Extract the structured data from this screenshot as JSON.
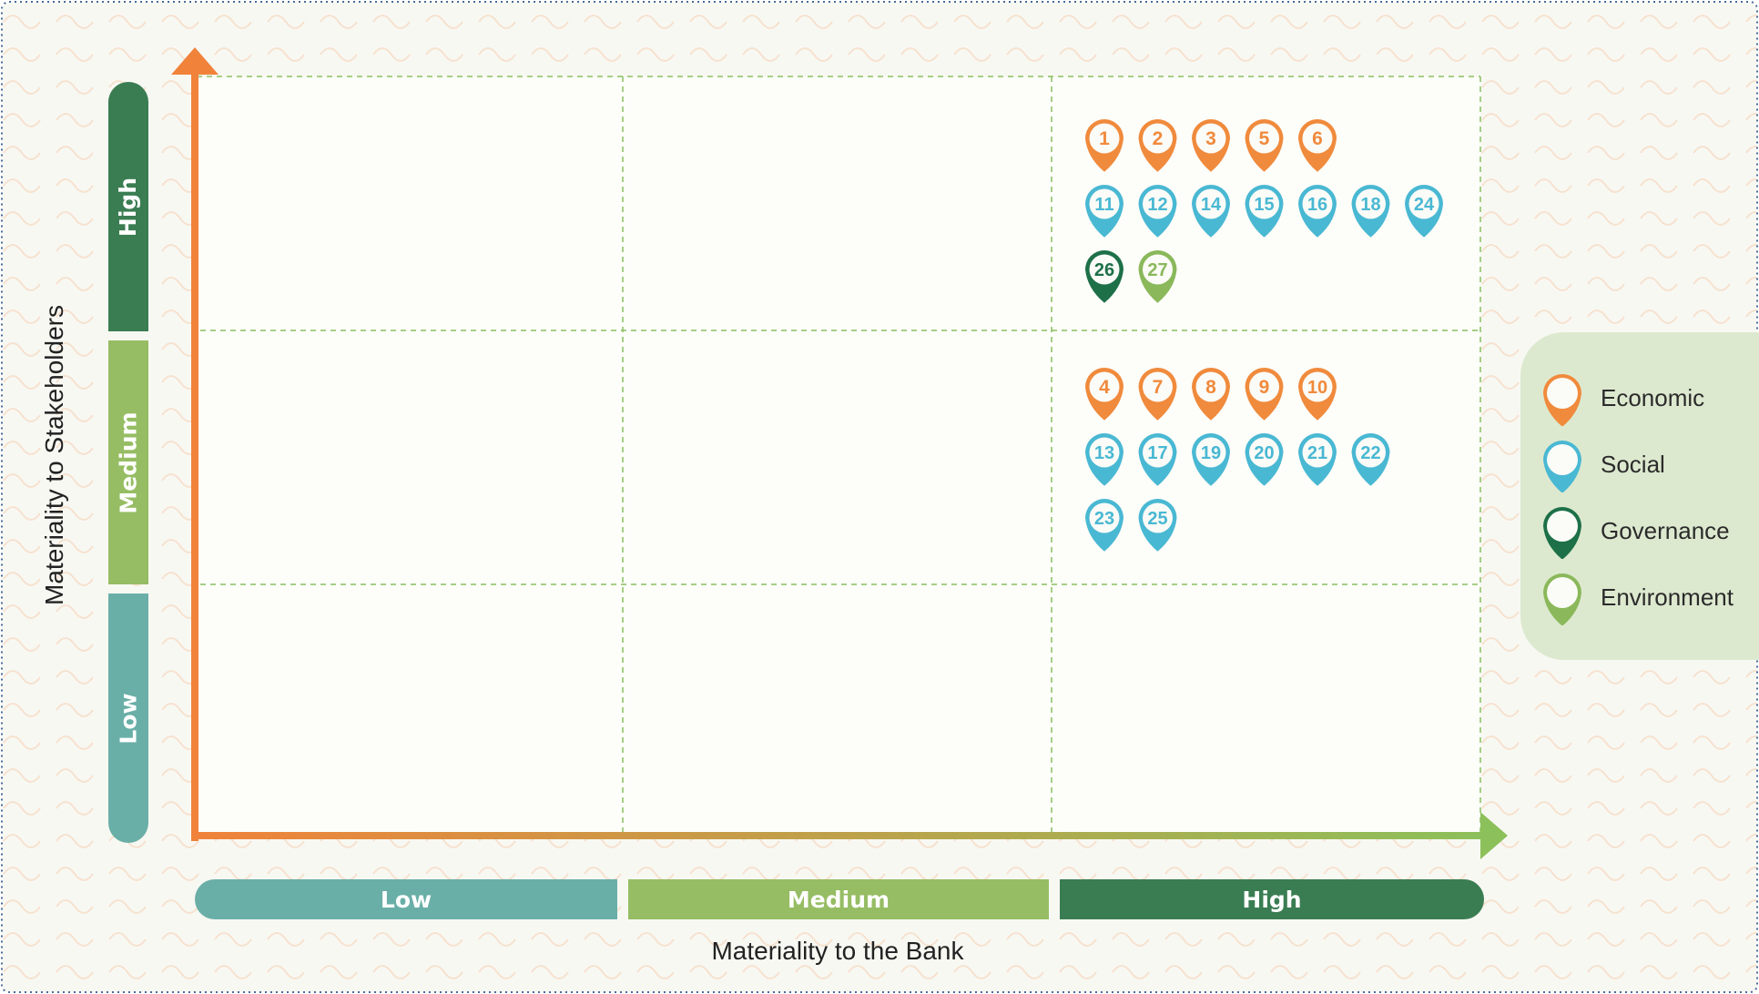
{
  "title_y": "Materiality to Stakeholders",
  "title_x": "Materiality to the Bank",
  "levels_x": [
    "Low",
    "Medium",
    "High"
  ],
  "levels_y": [
    "High",
    "Medium",
    "Low"
  ],
  "colors": {
    "economic": "#f08a3c",
    "social": "#49b8d3",
    "governance": "#1d7048",
    "environment": "#8ab85a",
    "low": "#6aafa7",
    "medium": "#96bd63",
    "high": "#3a7d52",
    "grid_line": "#8ac060",
    "axis_start": "#f0823a",
    "axis_end": "#8cc05a",
    "legend_bg": "#dde9cf"
  },
  "legend": [
    {
      "label": "Economic",
      "category": "economic"
    },
    {
      "label": "Social",
      "category": "social"
    },
    {
      "label": "Governance",
      "category": "governance"
    },
    {
      "label": "Environment",
      "category": "environment"
    }
  ],
  "chart_data": {
    "type": "matrix",
    "x_levels": [
      "Low",
      "Medium",
      "High"
    ],
    "y_levels": [
      "Low",
      "Medium",
      "High"
    ],
    "cells": [
      {
        "x": "High",
        "y": "High",
        "rows": [
          [
            {
              "n": "1",
              "cat": "economic"
            },
            {
              "n": "2",
              "cat": "economic"
            },
            {
              "n": "3",
              "cat": "economic"
            },
            {
              "n": "5",
              "cat": "economic"
            },
            {
              "n": "6",
              "cat": "economic"
            }
          ],
          [
            {
              "n": "11",
              "cat": "social"
            },
            {
              "n": "12",
              "cat": "social"
            },
            {
              "n": "14",
              "cat": "social"
            },
            {
              "n": "15",
              "cat": "social"
            },
            {
              "n": "16",
              "cat": "social"
            },
            {
              "n": "18",
              "cat": "social"
            },
            {
              "n": "24",
              "cat": "social"
            }
          ],
          [
            {
              "n": "26",
              "cat": "governance"
            },
            {
              "n": "27",
              "cat": "environment"
            }
          ]
        ]
      },
      {
        "x": "High",
        "y": "Medium",
        "rows": [
          [
            {
              "n": "4",
              "cat": "economic"
            },
            {
              "n": "7",
              "cat": "economic"
            },
            {
              "n": "8",
              "cat": "economic"
            },
            {
              "n": "9",
              "cat": "economic"
            },
            {
              "n": "10",
              "cat": "economic"
            }
          ],
          [
            {
              "n": "13",
              "cat": "social"
            },
            {
              "n": "17",
              "cat": "social"
            },
            {
              "n": "19",
              "cat": "social"
            },
            {
              "n": "20",
              "cat": "social"
            },
            {
              "n": "21",
              "cat": "social"
            },
            {
              "n": "22",
              "cat": "social"
            }
          ],
          [
            {
              "n": "23",
              "cat": "social"
            },
            {
              "n": "25",
              "cat": "social"
            }
          ]
        ]
      }
    ]
  }
}
